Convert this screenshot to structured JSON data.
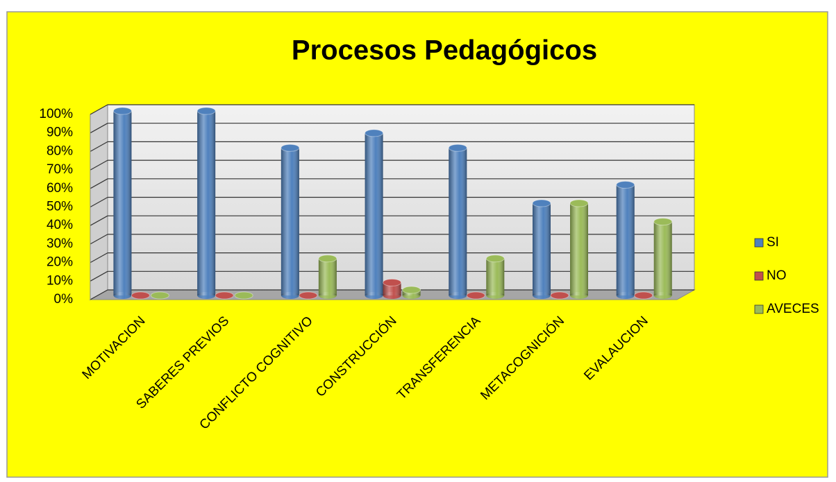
{
  "chart_data": {
    "type": "bar3d",
    "title": "Procesos Pedagógicos",
    "categories": [
      "MOTIVACION",
      "SABERES PREVIOS",
      "CONFLICTO COGNITIVO",
      "CONSTRUCCIÓN",
      "TRANSFERENCIA",
      "METACOGNICIÓN",
      "EVALAUCION"
    ],
    "series": [
      {
        "name": "SI",
        "color": "#4f81bd",
        "values": [
          100,
          100,
          80,
          88,
          80,
          50,
          60
        ]
      },
      {
        "name": "NO",
        "color": "#c0504d",
        "values": [
          0,
          0,
          0,
          7,
          0,
          0,
          0
        ]
      },
      {
        "name": "AVECES",
        "color": "#9bbb59",
        "values": [
          0,
          0,
          20,
          3,
          20,
          50,
          40
        ]
      }
    ],
    "ylim": [
      0,
      100
    ],
    "yticks": [
      {
        "value": 0,
        "label": "0%"
      },
      {
        "value": 10,
        "label": "10%"
      },
      {
        "value": 20,
        "label": "20%"
      },
      {
        "value": 30,
        "label": "30%"
      },
      {
        "value": 40,
        "label": "40%"
      },
      {
        "value": 50,
        "label": "50%"
      },
      {
        "value": 60,
        "label": "60%"
      },
      {
        "value": 70,
        "label": "70%"
      },
      {
        "value": 80,
        "label": "80%"
      },
      {
        "value": 90,
        "label": "90%"
      },
      {
        "value": 100,
        "label": "100%"
      }
    ],
    "grid": true,
    "legend": "right"
  }
}
